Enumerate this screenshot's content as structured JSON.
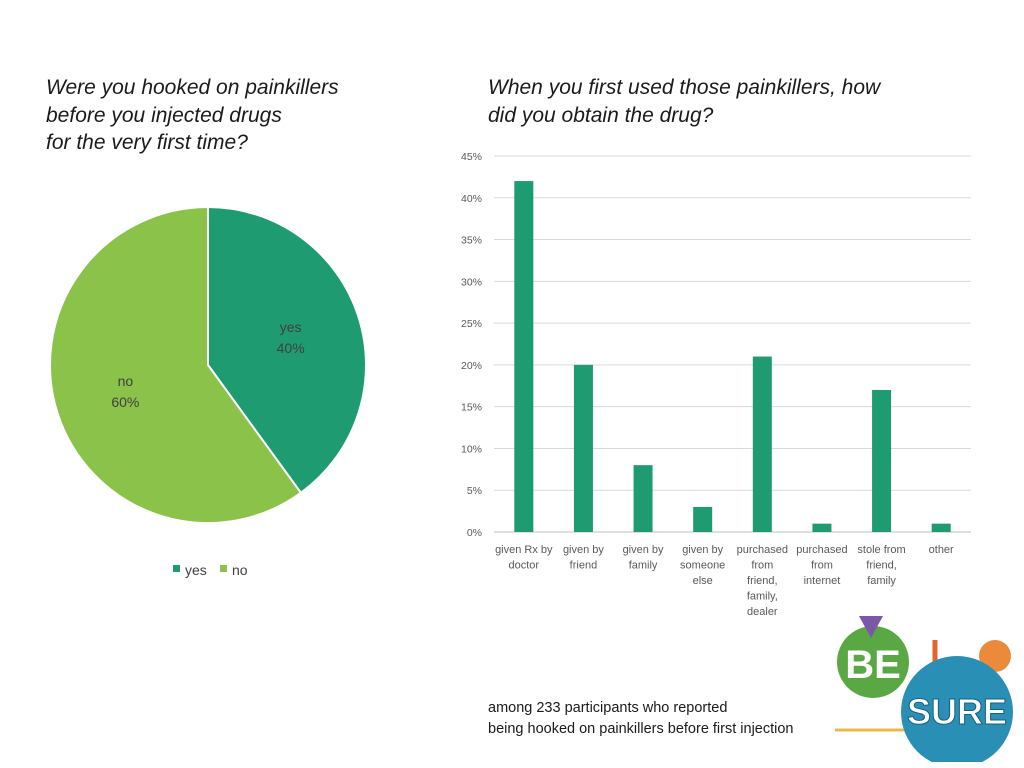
{
  "pie_title_lines": [
    "Were you hooked on painkillers",
    "before you injected drugs",
    "for the very first time?"
  ],
  "bar_title_lines": [
    "When you first used those painkillers, how",
    "did you obtain the drug?"
  ],
  "footnote_lines": [
    "among 233 participants who reported",
    "being hooked on painkillers before first injection"
  ],
  "logo": {
    "text_top": "BE",
    "text_bottom": "SURE"
  },
  "colors": {
    "yes": "#1f9b72",
    "no": "#8bc24a",
    "bar": "#1f9b72",
    "grid": "#d9d9d9",
    "axis_text": "#595959"
  },
  "chart_data": [
    {
      "type": "pie",
      "title": "Were you hooked on painkillers before you injected drugs for the very first time?",
      "labels": [
        "yes",
        "no"
      ],
      "values": [
        40,
        60
      ],
      "value_labels": [
        "40%",
        "60%"
      ],
      "legend": [
        "yes",
        "no"
      ],
      "legend_position": "bottom"
    },
    {
      "type": "bar",
      "title": "When you first used those painkillers, how did you obtain the drug?",
      "categories": [
        [
          "given Rx by",
          "doctor"
        ],
        [
          "given by",
          "friend"
        ],
        [
          "given by",
          "family"
        ],
        [
          "given by",
          "someone",
          "else"
        ],
        [
          "purchased",
          "from",
          "friend,",
          "family,",
          "dealer"
        ],
        [
          "purchased",
          "from",
          "internet"
        ],
        [
          "stole from",
          "friend,",
          "family"
        ],
        [
          "other"
        ]
      ],
      "values": [
        42,
        20,
        8,
        3,
        21,
        1,
        17,
        1
      ],
      "ylim": [
        0,
        45
      ],
      "yticks": [
        "0%",
        "5%",
        "10%",
        "15%",
        "20%",
        "25%",
        "30%",
        "35%",
        "40%",
        "45%"
      ],
      "grid": true
    }
  ]
}
